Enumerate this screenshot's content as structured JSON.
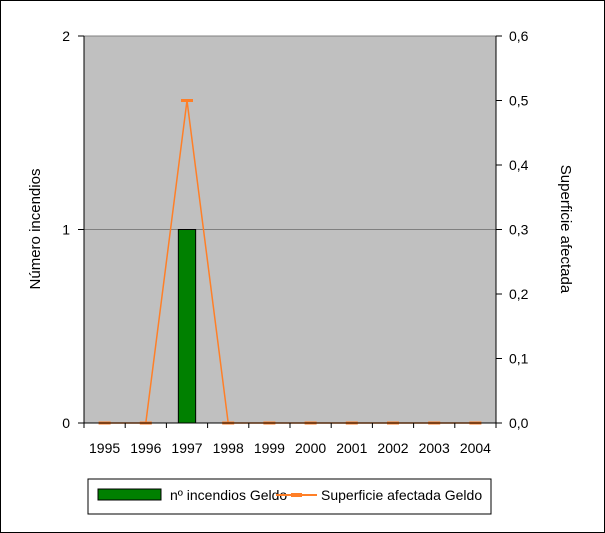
{
  "chart_data": {
    "type": "bar+line",
    "categories": [
      "1995",
      "1996",
      "1997",
      "1998",
      "1999",
      "2000",
      "2001",
      "2002",
      "2003",
      "2004"
    ],
    "series": [
      {
        "name": "nº incendios Geldo",
        "type": "bar",
        "axis": "left",
        "values": [
          0,
          0,
          1,
          0,
          0,
          0,
          0,
          0,
          0,
          0
        ],
        "color": "#008000"
      },
      {
        "name": "Superficie afectada Geldo",
        "type": "line",
        "axis": "right",
        "values": [
          0,
          0,
          0.5,
          0,
          0,
          0,
          0,
          0,
          0,
          0
        ],
        "color": "#ff7f27"
      }
    ],
    "ylabel_left": "Número incendios",
    "ylabel_right": "Superficie afectada",
    "ylim_left": [
      0,
      2
    ],
    "ylim_right": [
      0,
      0.6
    ],
    "yticks_left": [
      "0",
      "1",
      "2"
    ],
    "yticks_right": [
      "0,0",
      "0,1",
      "0,2",
      "0,3",
      "0,4",
      "0,5",
      "0,6"
    ],
    "plot_background": "#c0c0c0",
    "gridlines": "horizontal at left-axis major ticks",
    "legend_position": "bottom"
  }
}
